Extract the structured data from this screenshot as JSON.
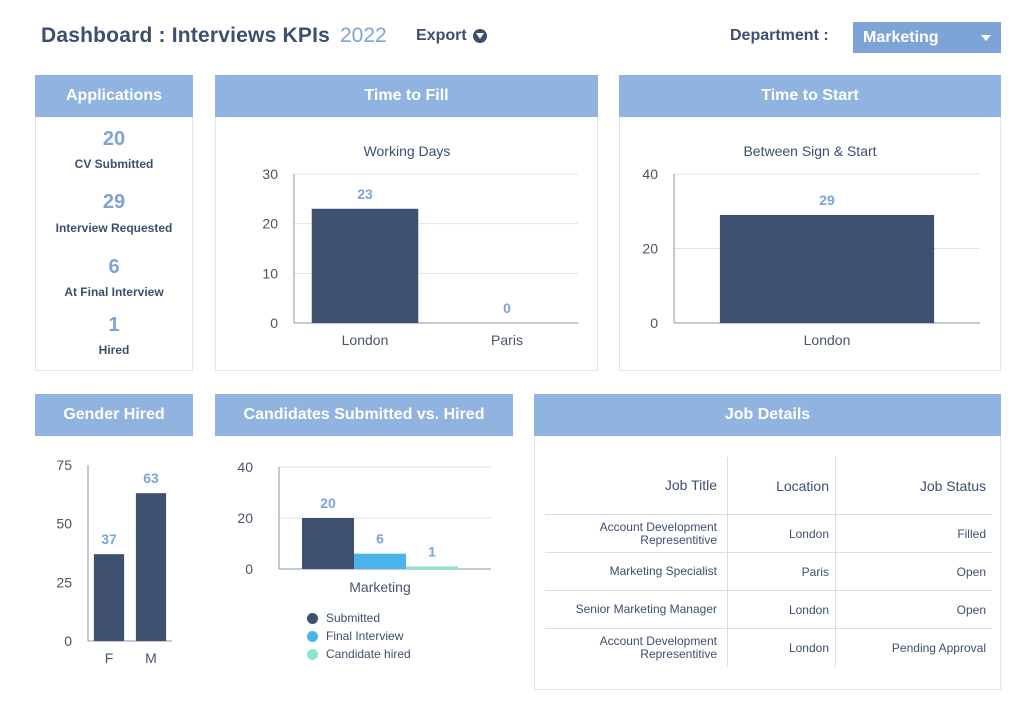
{
  "header": {
    "title": "Dashboard : Interviews KPIs",
    "year": "2022",
    "export_label": "Export",
    "department_label": "Department :",
    "department_value": "Marketing"
  },
  "applications": {
    "title": "Applications",
    "stats": [
      {
        "value": "20",
        "label": "CV Submitted"
      },
      {
        "value": "29",
        "label": "Interview Requested"
      },
      {
        "value": "6",
        "label": "At Final Interview"
      },
      {
        "value": "1",
        "label": "Hired"
      }
    ]
  },
  "time_to_fill": {
    "title": "Time to Fill"
  },
  "time_to_start": {
    "title": "Time to Start"
  },
  "gender_hired": {
    "title": "Gender Hired"
  },
  "candidates": {
    "title": "Candidates Submitted vs. Hired"
  },
  "job_details": {
    "title": "Job Details",
    "columns": [
      "Job Title",
      "Location",
      "Job Status"
    ],
    "rows": [
      {
        "title": "Account Development Representitive",
        "title_l1": "Account Development",
        "title_l2": "Representitive",
        "location": "London",
        "status": "Filled"
      },
      {
        "title": "Marketing Specialist",
        "location": "Paris",
        "status": "Open"
      },
      {
        "title": "Senior Marketing Manager",
        "location": "London",
        "status": "Open"
      },
      {
        "title": "Account Development Representitive",
        "title_l1": "Account Development",
        "title_l2": "Representitive",
        "location": "London",
        "status": "Pending Approval"
      }
    ]
  },
  "colors": {
    "header_bar": "#91b3e0",
    "accent": "#7ea3d6",
    "bar_dark": "#3f5170",
    "final_interview": "#4ab3e8",
    "candidate_hired": "#8ee6c9"
  },
  "chart_data": [
    {
      "id": "time_to_fill",
      "type": "bar",
      "title": "Working Days",
      "categories": [
        "London",
        "Paris"
      ],
      "values": [
        23,
        0
      ],
      "yticks": [
        0,
        10,
        20,
        30
      ],
      "ylim": [
        0,
        30
      ],
      "grid": true
    },
    {
      "id": "time_to_start",
      "type": "bar",
      "title": "Between Sign & Start",
      "categories": [
        "London"
      ],
      "values": [
        29
      ],
      "yticks": [
        0,
        20,
        40
      ],
      "ylim": [
        0,
        40
      ],
      "grid": true
    },
    {
      "id": "gender_hired",
      "type": "bar",
      "categories": [
        "F",
        "M"
      ],
      "values": [
        37,
        63
      ],
      "yticks": [
        0,
        25,
        50,
        75
      ],
      "ylim": [
        0,
        75
      ],
      "grid": false
    },
    {
      "id": "candidates",
      "type": "bar",
      "categories": [
        "Marketing"
      ],
      "series": [
        {
          "name": "Submitted",
          "values": [
            20
          ]
        },
        {
          "name": "Final Interview",
          "values": [
            6
          ]
        },
        {
          "name": "Candidate hired",
          "values": [
            1
          ]
        }
      ],
      "yticks": [
        0,
        20,
        40
      ],
      "ylim": [
        0,
        40
      ],
      "grid": true,
      "legend": "bottom"
    }
  ]
}
